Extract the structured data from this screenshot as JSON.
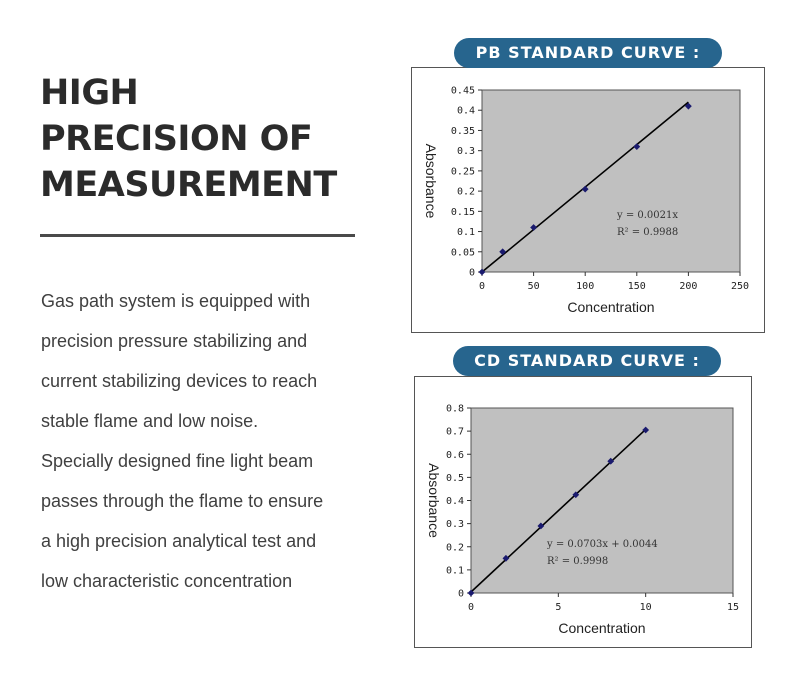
{
  "headline": [
    "HIGH",
    "PRECISION OF",
    "MEASUREMENT"
  ],
  "description": [
    "Gas path system is equipped with",
    "precision pressure stabilizing and",
    "current stabilizing devices to reach",
    "stable flame and low noise.",
    "Specially designed fine light beam",
    "passes through the flame to ensure",
    "a high precision analytical test and",
    "low characteristic concentration"
  ],
  "pb_title": "PB STANDARD CURVE :",
  "cd_title": "CD STANDARD CURVE :",
  "colors": {
    "pill": "#27658e",
    "plot_area": "#c0c0c0",
    "marker": "#1a1a6e",
    "fit_line": "#000000"
  },
  "chart_data": [
    {
      "type": "scatter",
      "title": "PB STANDARD CURVE :",
      "xlabel": "Concentration",
      "ylabel": "Absorbance",
      "xlim": [
        0,
        250
      ],
      "ylim": [
        0,
        0.45
      ],
      "xticks": [
        "0",
        "50",
        "100",
        "150",
        "200",
        "250"
      ],
      "yticks": [
        "0",
        "0.05",
        "0.1",
        "0.15",
        "0.2",
        "0.25",
        "0.3",
        "0.35",
        "0.4",
        "0.45"
      ],
      "series": [
        {
          "x": [
            0,
            20,
            50,
            100,
            150,
            200
          ],
          "y": [
            0,
            0.05,
            0.11,
            0.205,
            0.31,
            0.41
          ]
        }
      ],
      "fit": {
        "slope": 0.0021,
        "intercept": 0
      },
      "annotations": [
        "y = 0.0021x",
        "R² = 0.9988"
      ],
      "grid": false
    },
    {
      "type": "scatter",
      "title": "CD STANDARD CURVE :",
      "xlabel": "Concentration",
      "ylabel": "Absorbance",
      "xlim": [
        0,
        15
      ],
      "ylim": [
        0,
        0.8
      ],
      "xticks": [
        "0",
        "5",
        "10",
        "15"
      ],
      "yticks": [
        "0",
        "0.1",
        "0.2",
        "0.3",
        "0.4",
        "0.5",
        "0.6",
        "0.7",
        "0.8"
      ],
      "series": [
        {
          "x": [
            0,
            2,
            4,
            6,
            8,
            10
          ],
          "y": [
            0,
            0.15,
            0.29,
            0.425,
            0.57,
            0.705
          ]
        }
      ],
      "fit": {
        "slope": 0.0703,
        "intercept": 0.0044
      },
      "annotations": [
        "y = 0.0703x + 0.0044",
        "R² = 0.9998"
      ],
      "grid": false
    }
  ]
}
